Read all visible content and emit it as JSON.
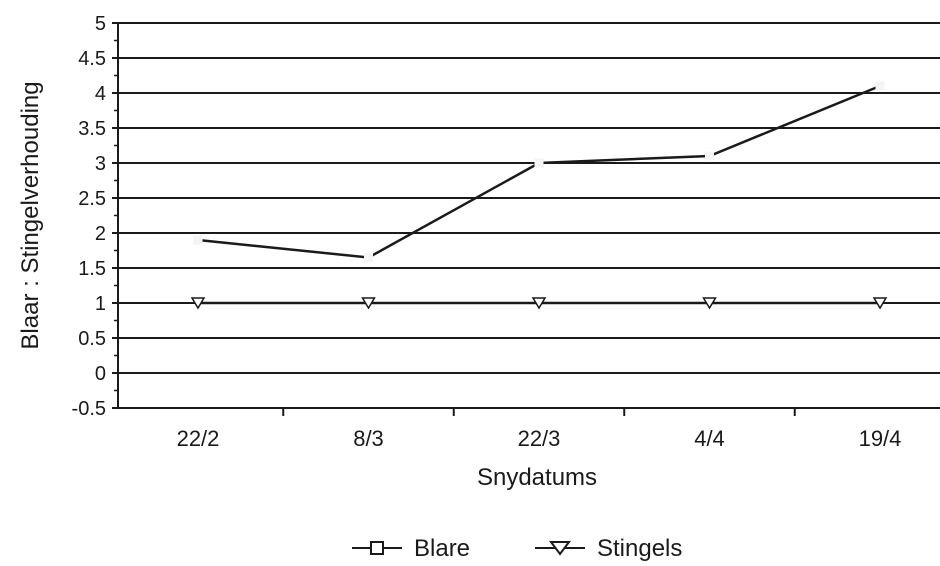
{
  "chart_data": {
    "type": "line",
    "categories": [
      "22/2",
      "8/3",
      "22/3",
      "4/4",
      "19/4"
    ],
    "series": [
      {
        "name": "Blare",
        "values": [
          1.9,
          1.65,
          3.0,
          3.1,
          4.1
        ],
        "marker": "square"
      },
      {
        "name": "Stingels",
        "values": [
          1.0,
          1.0,
          1.0,
          1.0,
          1.0
        ],
        "marker": "triangle-down"
      }
    ],
    "xlabel": "Snydatums",
    "ylabel": "Blaar : Stingelverhouding",
    "ylim": [
      -0.5,
      5
    ],
    "yticks": [
      -0.5,
      0,
      0.5,
      1,
      1.5,
      2,
      2.5,
      3,
      3.5,
      4,
      4.5,
      5
    ],
    "ytick_labels": [
      "-0.5",
      "0",
      "0.5",
      "1",
      "1.5",
      "2",
      "2.5",
      "3",
      "3.5",
      "4",
      "4.5",
      "5"
    ],
    "grid": true,
    "legend_position": "bottom-center",
    "colors": {
      "line": "#1a1a1a",
      "grid": "#1a1a1a",
      "background": "#ffffff"
    }
  }
}
